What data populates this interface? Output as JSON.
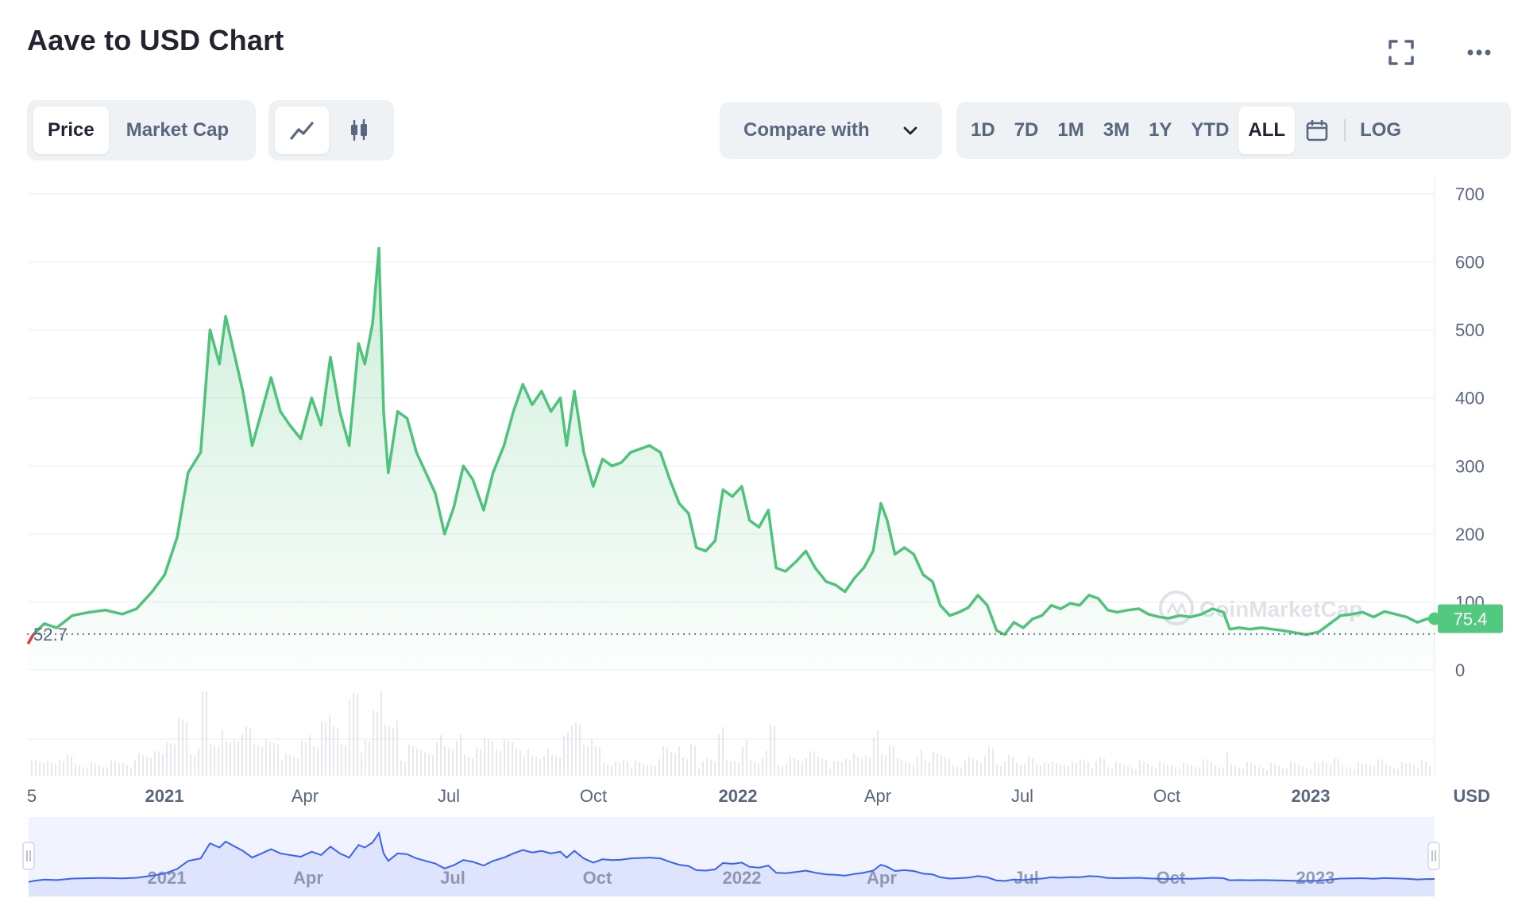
{
  "header": {
    "title": "Aave to USD Chart"
  },
  "icons": {
    "fullscreen": "fullscreen-icon",
    "more": "more-icon",
    "line": "line-chart-icon",
    "candle": "candlestick-icon",
    "calendar": "calendar-icon",
    "chevron": "chevron-down-icon"
  },
  "toolbar": {
    "price_label": "Price",
    "market_cap_label": "Market Cap",
    "compare_label": "Compare with",
    "ranges": [
      "1D",
      "7D",
      "1M",
      "3M",
      "1Y",
      "YTD",
      "ALL"
    ],
    "active_range": "ALL",
    "log_label": "LOG"
  },
  "colors": {
    "line": "#4fc27b",
    "down": "#ea3943",
    "price_tag": "#52c97f",
    "navigator_line": "#3861fb",
    "navigator_fill": "#e8ebfd"
  },
  "chart_data": {
    "type": "area",
    "title": "Aave to USD Chart",
    "ylabel": "",
    "unit": "USD",
    "ylim": [
      0,
      700
    ],
    "y_ticks": [
      "0",
      "100",
      "200",
      "300",
      "400",
      "500",
      "600",
      "700"
    ],
    "x_ticks": [
      {
        "label": "5",
        "bold": false
      },
      {
        "label": "2021",
        "bold": true
      },
      {
        "label": "Apr",
        "bold": false
      },
      {
        "label": "Jul",
        "bold": false
      },
      {
        "label": "Oct",
        "bold": false
      },
      {
        "label": "2022",
        "bold": true
      },
      {
        "label": "Apr",
        "bold": false
      },
      {
        "label": "Jul",
        "bold": false
      },
      {
        "label": "Oct",
        "bold": false
      },
      {
        "label": "2023",
        "bold": true
      }
    ],
    "navigator_ticks": [
      "2021",
      "Apr",
      "Jul",
      "Oct",
      "2022",
      "Apr",
      "Jul",
      "Oct",
      "2023"
    ],
    "reference_price": "52.7",
    "current_price": "75.4",
    "watermark": "CoinMarketCap",
    "x_range": [
      "2020-10-02",
      "2023-03-20"
    ],
    "series": [
      {
        "values": [
          [
            "2020-10-02",
            40
          ],
          [
            "2020-10-05",
            52
          ],
          [
            "2020-10-12",
            68
          ],
          [
            "2020-10-20",
            62
          ],
          [
            "2020-10-30",
            80
          ],
          [
            "2020-11-10",
            85
          ],
          [
            "2020-11-20",
            88
          ],
          [
            "2020-12-01",
            82
          ],
          [
            "2020-12-10",
            90
          ],
          [
            "2020-12-20",
            115
          ],
          [
            "2020-12-28",
            140
          ],
          [
            "2021-01-05",
            195
          ],
          [
            "2021-01-12",
            290
          ],
          [
            "2021-01-20",
            320
          ],
          [
            "2021-01-26",
            500
          ],
          [
            "2021-02-01",
            450
          ],
          [
            "2021-02-05",
            520
          ],
          [
            "2021-02-10",
            470
          ],
          [
            "2021-02-16",
            410
          ],
          [
            "2021-02-22",
            330
          ],
          [
            "2021-02-28",
            380
          ],
          [
            "2021-03-06",
            430
          ],
          [
            "2021-03-12",
            380
          ],
          [
            "2021-03-18",
            360
          ],
          [
            "2021-03-25",
            340
          ],
          [
            "2021-04-01",
            400
          ],
          [
            "2021-04-07",
            360
          ],
          [
            "2021-04-13",
            460
          ],
          [
            "2021-04-19",
            380
          ],
          [
            "2021-04-25",
            330
          ],
          [
            "2021-05-01",
            480
          ],
          [
            "2021-05-05",
            450
          ],
          [
            "2021-05-10",
            510
          ],
          [
            "2021-05-14",
            620
          ],
          [
            "2021-05-17",
            380
          ],
          [
            "2021-05-20",
            290
          ],
          [
            "2021-05-26",
            380
          ],
          [
            "2021-06-01",
            370
          ],
          [
            "2021-06-07",
            320
          ],
          [
            "2021-06-13",
            290
          ],
          [
            "2021-06-19",
            260
          ],
          [
            "2021-06-25",
            200
          ],
          [
            "2021-07-01",
            240
          ],
          [
            "2021-07-07",
            300
          ],
          [
            "2021-07-13",
            280
          ],
          [
            "2021-07-20",
            235
          ],
          [
            "2021-07-26",
            290
          ],
          [
            "2021-08-02",
            330
          ],
          [
            "2021-08-08",
            380
          ],
          [
            "2021-08-14",
            420
          ],
          [
            "2021-08-20",
            390
          ],
          [
            "2021-08-26",
            410
          ],
          [
            "2021-09-01",
            380
          ],
          [
            "2021-09-07",
            400
          ],
          [
            "2021-09-11",
            330
          ],
          [
            "2021-09-16",
            410
          ],
          [
            "2021-09-22",
            320
          ],
          [
            "2021-09-28",
            270
          ],
          [
            "2021-10-04",
            310
          ],
          [
            "2021-10-10",
            300
          ],
          [
            "2021-10-16",
            305
          ],
          [
            "2021-10-22",
            320
          ],
          [
            "2021-10-28",
            325
          ],
          [
            "2021-11-03",
            330
          ],
          [
            "2021-11-10",
            320
          ],
          [
            "2021-11-16",
            280
          ],
          [
            "2021-11-22",
            245
          ],
          [
            "2021-11-28",
            230
          ],
          [
            "2021-12-03",
            180
          ],
          [
            "2021-12-09",
            175
          ],
          [
            "2021-12-15",
            190
          ],
          [
            "2021-12-20",
            265
          ],
          [
            "2021-12-26",
            255
          ],
          [
            "2022-01-01",
            270
          ],
          [
            "2022-01-06",
            220
          ],
          [
            "2022-01-12",
            210
          ],
          [
            "2022-01-18",
            235
          ],
          [
            "2022-01-23",
            150
          ],
          [
            "2022-01-29",
            145
          ],
          [
            "2022-02-05",
            160
          ],
          [
            "2022-02-11",
            175
          ],
          [
            "2022-02-17",
            150
          ],
          [
            "2022-02-24",
            130
          ],
          [
            "2022-03-02",
            125
          ],
          [
            "2022-03-08",
            115
          ],
          [
            "2022-03-14",
            135
          ],
          [
            "2022-03-20",
            150
          ],
          [
            "2022-03-26",
            175
          ],
          [
            "2022-03-31",
            245
          ],
          [
            "2022-04-04",
            220
          ],
          [
            "2022-04-09",
            170
          ],
          [
            "2022-04-15",
            180
          ],
          [
            "2022-04-21",
            170
          ],
          [
            "2022-04-27",
            140
          ],
          [
            "2022-05-03",
            130
          ],
          [
            "2022-05-08",
            95
          ],
          [
            "2022-05-14",
            80
          ],
          [
            "2022-05-20",
            85
          ],
          [
            "2022-05-26",
            92
          ],
          [
            "2022-06-01",
            110
          ],
          [
            "2022-06-07",
            95
          ],
          [
            "2022-06-13",
            58
          ],
          [
            "2022-06-18",
            52
          ],
          [
            "2022-06-24",
            70
          ],
          [
            "2022-06-30",
            62
          ],
          [
            "2022-07-06",
            75
          ],
          [
            "2022-07-12",
            80
          ],
          [
            "2022-07-18",
            95
          ],
          [
            "2022-07-24",
            90
          ],
          [
            "2022-07-30",
            98
          ],
          [
            "2022-08-05",
            95
          ],
          [
            "2022-08-11",
            110
          ],
          [
            "2022-08-17",
            105
          ],
          [
            "2022-08-23",
            88
          ],
          [
            "2022-08-29",
            85
          ],
          [
            "2022-09-05",
            88
          ],
          [
            "2022-09-12",
            90
          ],
          [
            "2022-09-18",
            82
          ],
          [
            "2022-09-25",
            78
          ],
          [
            "2022-10-01",
            76
          ],
          [
            "2022-10-08",
            80
          ],
          [
            "2022-10-15",
            78
          ],
          [
            "2022-10-22",
            82
          ],
          [
            "2022-10-29",
            90
          ],
          [
            "2022-11-05",
            85
          ],
          [
            "2022-11-09",
            60
          ],
          [
            "2022-11-15",
            62
          ],
          [
            "2022-11-22",
            60
          ],
          [
            "2022-11-29",
            62
          ],
          [
            "2022-12-06",
            60
          ],
          [
            "2022-12-13",
            58
          ],
          [
            "2022-12-20",
            55
          ],
          [
            "2022-12-28",
            52
          ],
          [
            "2023-01-05",
            56
          ],
          [
            "2023-01-12",
            68
          ],
          [
            "2023-01-19",
            80
          ],
          [
            "2023-01-26",
            82
          ],
          [
            "2023-02-02",
            85
          ],
          [
            "2023-02-09",
            78
          ],
          [
            "2023-02-16",
            86
          ],
          [
            "2023-02-23",
            82
          ],
          [
            "2023-03-02",
            78
          ],
          [
            "2023-03-09",
            70
          ],
          [
            "2023-03-15",
            75
          ],
          [
            "2023-03-20",
            75.4
          ]
        ]
      }
    ]
  }
}
